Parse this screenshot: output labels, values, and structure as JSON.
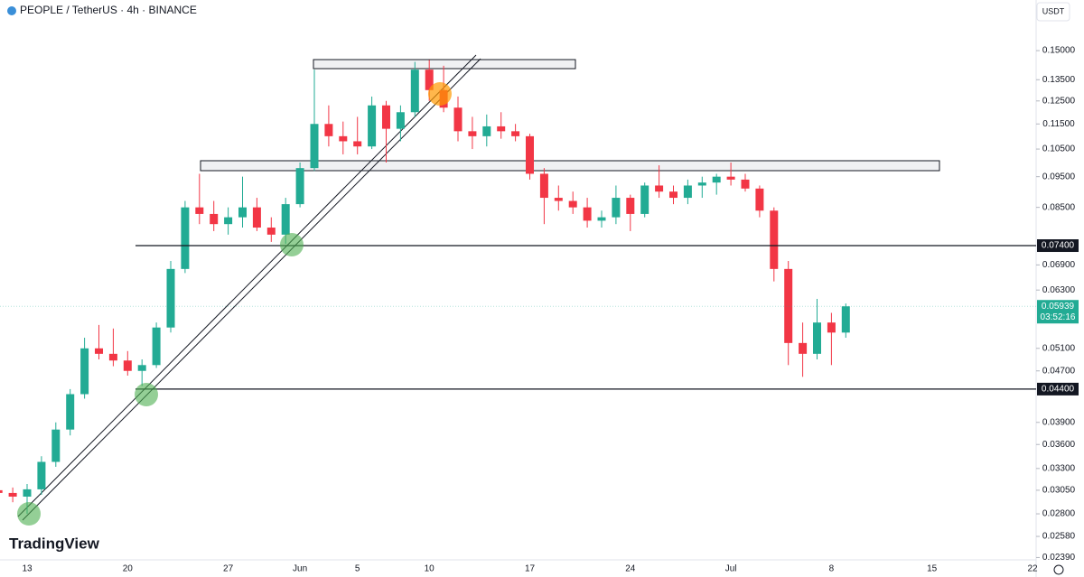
{
  "header": {
    "symbol": "PEOPLE / TetherUS · 4h · BINANCE",
    "currency_button": "USDT",
    "logo": "TradingView"
  },
  "chart_data": {
    "type": "candlestick",
    "log_scale": true,
    "grid": false,
    "up_color": "#22ab94",
    "down_color": "#f23645",
    "categories": [
      null,
      null,
      "13",
      null,
      null,
      null,
      null,
      null,
      null,
      "20",
      null,
      null,
      null,
      null,
      null,
      null,
      "27",
      null,
      null,
      null,
      null,
      "Jun",
      null,
      null,
      null,
      "5",
      null,
      null,
      null,
      null,
      "10",
      null,
      null,
      null,
      null,
      null,
      null,
      "17",
      null,
      null,
      null,
      null,
      null,
      null,
      "24",
      null,
      null,
      null,
      null,
      null,
      null,
      "Jul",
      null,
      null,
      null,
      null,
      null,
      null,
      "8",
      null,
      null,
      null,
      null,
      null,
      null,
      "15",
      null,
      null,
      null,
      null,
      null,
      null,
      "22"
    ],
    "series": [
      {
        "name": "PEOPLE / TetherUS",
        "values": [
          [
            0.0305,
            0.0315,
            0.0298,
            0.0302
          ],
          [
            0.0302,
            0.0308,
            0.0292,
            0.0298
          ],
          [
            0.0298,
            0.0312,
            0.028,
            0.0306
          ],
          [
            0.0306,
            0.0345,
            0.03,
            0.0338
          ],
          [
            0.0338,
            0.039,
            0.0332,
            0.038
          ],
          [
            0.038,
            0.044,
            0.0372,
            0.0432
          ],
          [
            0.0432,
            0.053,
            0.0425,
            0.051
          ],
          [
            0.051,
            0.0555,
            0.049,
            0.05
          ],
          [
            0.05,
            0.0548,
            0.0478,
            0.0488
          ],
          [
            0.0488,
            0.0505,
            0.0462,
            0.047
          ],
          [
            0.047,
            0.049,
            0.0445,
            0.048
          ],
          [
            0.048,
            0.056,
            0.0475,
            0.055
          ],
          [
            0.055,
            0.07,
            0.054,
            0.068
          ],
          [
            0.068,
            0.087,
            0.067,
            0.085
          ],
          [
            0.085,
            0.096,
            0.08,
            0.083
          ],
          [
            0.083,
            0.087,
            0.078,
            0.08
          ],
          [
            0.08,
            0.085,
            0.077,
            0.082
          ],
          [
            0.082,
            0.095,
            0.079,
            0.085
          ],
          [
            0.085,
            0.088,
            0.078,
            0.079
          ],
          [
            0.079,
            0.082,
            0.075,
            0.077
          ],
          [
            0.077,
            0.088,
            0.0745,
            0.086
          ],
          [
            0.086,
            0.1,
            0.085,
            0.098
          ],
          [
            0.098,
            0.14,
            0.097,
            0.115
          ],
          [
            0.115,
            0.123,
            0.106,
            0.11
          ],
          [
            0.11,
            0.116,
            0.103,
            0.108
          ],
          [
            0.108,
            0.118,
            0.103,
            0.106
          ],
          [
            0.106,
            0.127,
            0.105,
            0.123
          ],
          [
            0.123,
            0.125,
            0.1,
            0.113
          ],
          [
            0.113,
            0.123,
            0.108,
            0.12
          ],
          [
            0.12,
            0.144,
            0.118,
            0.14
          ],
          [
            0.14,
            0.145,
            0.125,
            0.13
          ],
          [
            0.13,
            0.142,
            0.12,
            0.122
          ],
          [
            0.122,
            0.127,
            0.108,
            0.112
          ],
          [
            0.112,
            0.118,
            0.105,
            0.11
          ],
          [
            0.11,
            0.119,
            0.106,
            0.114
          ],
          [
            0.114,
            0.12,
            0.109,
            0.112
          ],
          [
            0.112,
            0.115,
            0.108,
            0.11
          ],
          [
            0.11,
            0.111,
            0.094,
            0.096
          ],
          [
            0.096,
            0.098,
            0.08,
            0.088
          ],
          [
            0.088,
            0.092,
            0.084,
            0.087
          ],
          [
            0.087,
            0.09,
            0.083,
            0.085
          ],
          [
            0.085,
            0.088,
            0.079,
            0.081
          ],
          [
            0.081,
            0.084,
            0.079,
            0.082
          ],
          [
            0.082,
            0.092,
            0.08,
            0.088
          ],
          [
            0.088,
            0.089,
            0.078,
            0.083
          ],
          [
            0.083,
            0.093,
            0.082,
            0.092
          ],
          [
            0.092,
            0.099,
            0.088,
            0.09
          ],
          [
            0.09,
            0.092,
            0.086,
            0.088
          ],
          [
            0.088,
            0.094,
            0.086,
            0.092
          ],
          [
            0.092,
            0.095,
            0.088,
            0.093
          ],
          [
            0.093,
            0.096,
            0.089,
            0.095
          ],
          [
            0.095,
            0.1,
            0.092,
            0.094
          ],
          [
            0.094,
            0.096,
            0.09,
            0.091
          ],
          [
            0.091,
            0.092,
            0.082,
            0.084
          ],
          [
            0.084,
            0.085,
            0.065,
            0.068
          ],
          [
            0.068,
            0.07,
            0.048,
            0.052
          ],
          [
            0.052,
            0.056,
            0.046,
            0.05
          ],
          [
            0.05,
            0.061,
            0.049,
            0.056
          ],
          [
            0.056,
            0.058,
            0.048,
            0.054
          ],
          [
            0.054,
            0.06,
            0.053,
            0.05939
          ],
          null,
          null,
          null,
          null,
          null,
          null,
          null,
          null,
          null,
          null,
          null,
          null,
          null
        ]
      }
    ],
    "ylim": [
      0.0237,
      0.1802
    ],
    "yticks": [
      {
        "value": 0.15,
        "label": "0.15000"
      },
      {
        "value": 0.135,
        "label": "0.13500"
      },
      {
        "value": 0.125,
        "label": "0.12500"
      },
      {
        "value": 0.115,
        "label": "0.11500"
      },
      {
        "value": 0.105,
        "label": "0.10500"
      },
      {
        "value": 0.095,
        "label": "0.09500"
      },
      {
        "value": 0.085,
        "label": "0.08500"
      },
      {
        "value": 0.069,
        "label": "0.06900"
      },
      {
        "value": 0.063,
        "label": "0.06300"
      },
      {
        "value": 0.051,
        "label": "0.05100"
      },
      {
        "value": 0.047,
        "label": "0.04700"
      },
      {
        "value": 0.039,
        "label": "0.03900"
      },
      {
        "value": 0.036,
        "label": "0.03600"
      },
      {
        "value": 0.033,
        "label": "0.03300"
      },
      {
        "value": 0.0305,
        "label": "0.03050"
      },
      {
        "value": 0.028,
        "label": "0.02800"
      },
      {
        "value": 0.0258,
        "label": "0.02580"
      },
      {
        "value": 0.0239,
        "label": "0.02390"
      }
    ],
    "price_lines": [
      {
        "value": 0.074,
        "label": "0.07400"
      },
      {
        "value": 0.044,
        "label": "0.04400"
      }
    ],
    "last_price": {
      "value": 0.05939,
      "label": "0.05939"
    },
    "countdown": "03:52:16"
  }
}
